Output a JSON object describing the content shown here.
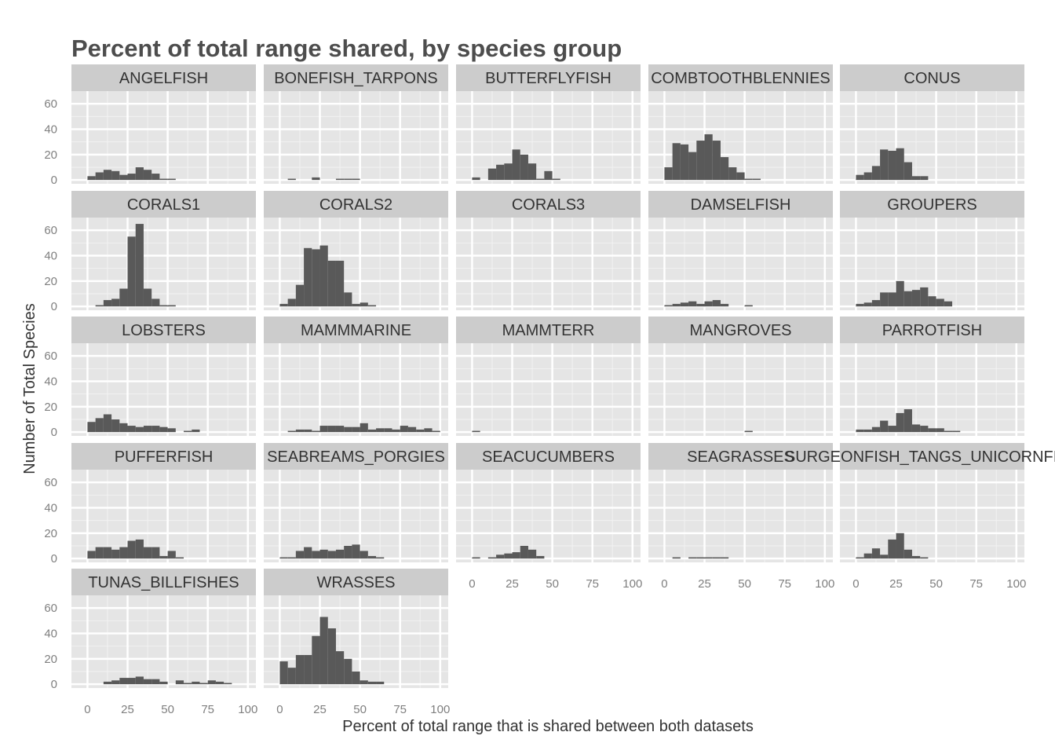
{
  "chart_data": {
    "type": "bar",
    "title": "Percent of total range shared, by species group",
    "xlabel": "Percent of total range that is shared between both datasets",
    "ylabel": "Number of Total Species",
    "xlim": [
      -10,
      105
    ],
    "ylim": [
      -3,
      70
    ],
    "x_ticks": [
      0,
      25,
      50,
      75,
      100
    ],
    "y_ticks": [
      0,
      20,
      40,
      60
    ],
    "bin_width": 5,
    "bin_starts": [
      0,
      5,
      10,
      15,
      20,
      25,
      30,
      35,
      40,
      45,
      50,
      55,
      60,
      65,
      70,
      75,
      80,
      85,
      90,
      95
    ],
    "grid": true,
    "panels": [
      {
        "name": "ANGELFISH",
        "values": [
          3,
          6,
          8,
          7,
          4,
          5,
          10,
          8,
          5,
          1,
          1,
          0,
          0,
          0,
          0,
          0,
          0,
          0,
          0,
          0
        ]
      },
      {
        "name": "BONEFISH_TARPONS",
        "values": [
          0,
          1,
          0,
          0,
          2,
          0,
          0,
          1,
          1,
          1,
          0,
          0,
          0,
          0,
          0,
          0,
          0,
          0,
          0,
          0
        ]
      },
      {
        "name": "BUTTERFLYFISH",
        "values": [
          2,
          0,
          9,
          12,
          13,
          24,
          20,
          13,
          1,
          7,
          1,
          0,
          0,
          0,
          0,
          0,
          0,
          0,
          0,
          0
        ]
      },
      {
        "name": "COMBTOOTHBLENNIES",
        "values": [
          10,
          29,
          28,
          22,
          31,
          36,
          31,
          18,
          10,
          6,
          1,
          1,
          0,
          0,
          0,
          0,
          0,
          0,
          0,
          0
        ]
      },
      {
        "name": "CONUS",
        "values": [
          4,
          6,
          11,
          24,
          23,
          25,
          14,
          3,
          3,
          0,
          0,
          0,
          0,
          0,
          0,
          0,
          0,
          0,
          0,
          0
        ]
      },
      {
        "name": "CORALS1",
        "values": [
          0,
          1,
          5,
          6,
          14,
          55,
          65,
          14,
          6,
          1,
          1,
          0,
          0,
          0,
          0,
          0,
          0,
          0,
          0,
          0
        ]
      },
      {
        "name": "CORALS2",
        "values": [
          2,
          6,
          17,
          46,
          45,
          48,
          36,
          36,
          11,
          2,
          3,
          1,
          0,
          0,
          0,
          0,
          0,
          0,
          0,
          0
        ]
      },
      {
        "name": "CORALS3",
        "values": [
          0,
          0,
          0,
          0,
          0,
          0,
          0,
          0,
          0,
          0,
          0,
          0,
          0,
          0,
          0,
          0,
          0,
          0,
          0,
          0
        ]
      },
      {
        "name": "DAMSELFISH",
        "values": [
          1,
          2,
          3,
          4,
          2,
          4,
          5,
          2,
          0,
          0,
          1,
          0,
          0,
          0,
          0,
          0,
          0,
          0,
          0,
          0
        ]
      },
      {
        "name": "GROUPERS",
        "values": [
          2,
          3,
          5,
          11,
          11,
          20,
          12,
          13,
          15,
          8,
          6,
          4,
          0,
          0,
          0,
          0,
          0,
          0,
          0,
          0
        ]
      },
      {
        "name": "LOBSTERS",
        "values": [
          8,
          11,
          14,
          10,
          7,
          5,
          4,
          5,
          5,
          4,
          3,
          0,
          1,
          2,
          0,
          0,
          0,
          0,
          0,
          0
        ]
      },
      {
        "name": "MAMMMARINE",
        "values": [
          0,
          1,
          2,
          2,
          1,
          5,
          5,
          5,
          4,
          4,
          7,
          2,
          3,
          3,
          2,
          5,
          4,
          2,
          3,
          1
        ]
      },
      {
        "name": "MAMMTERR",
        "values": [
          1,
          0,
          0,
          0,
          0,
          0,
          0,
          0,
          0,
          0,
          0,
          0,
          0,
          0,
          0,
          0,
          0,
          0,
          0,
          0
        ]
      },
      {
        "name": "MANGROVES",
        "values": [
          0,
          0,
          0,
          0,
          0,
          0,
          0,
          0,
          0,
          0,
          1,
          0,
          0,
          0,
          0,
          0,
          0,
          0,
          0,
          0
        ]
      },
      {
        "name": "PARROTFISH",
        "values": [
          2,
          2,
          4,
          9,
          5,
          15,
          18,
          6,
          5,
          3,
          3,
          1,
          1,
          0,
          0,
          0,
          0,
          0,
          0,
          0
        ]
      },
      {
        "name": "PUFFERFISH",
        "values": [
          6,
          9,
          9,
          7,
          9,
          14,
          15,
          9,
          9,
          2,
          6,
          1,
          0,
          0,
          0,
          0,
          0,
          0,
          0,
          0
        ]
      },
      {
        "name": "SEABREAMS_PORGIES",
        "values": [
          1,
          1,
          6,
          9,
          6,
          7,
          6,
          7,
          10,
          11,
          6,
          2,
          1,
          0,
          0,
          0,
          0,
          0,
          0,
          0
        ]
      },
      {
        "name": "SEACUCUMBERS",
        "values": [
          1,
          0,
          1,
          3,
          4,
          5,
          10,
          7,
          2,
          0,
          0,
          0,
          0,
          0,
          0,
          0,
          0,
          0,
          0,
          0
        ]
      },
      {
        "name": "SEAGRASSES",
        "values": [
          0,
          1,
          0,
          1,
          1,
          1,
          1,
          1,
          0,
          0,
          0,
          0,
          0,
          0,
          0,
          0,
          0,
          0,
          0,
          0
        ]
      },
      {
        "name": "SURGEONFISH_TANGS_UNICORNFISH",
        "values": [
          1,
          4,
          8,
          3,
          15,
          20,
          7,
          2,
          1,
          0,
          0,
          0,
          0,
          0,
          0,
          0,
          0,
          0,
          0,
          0
        ]
      },
      {
        "name": "TUNAS_BILLFISHES",
        "values": [
          0,
          0,
          2,
          3,
          5,
          5,
          6,
          4,
          4,
          2,
          0,
          3,
          1,
          2,
          1,
          3,
          2,
          1,
          0,
          0
        ]
      },
      {
        "name": "WRASSES",
        "values": [
          18,
          13,
          23,
          23,
          38,
          53,
          44,
          26,
          20,
          10,
          3,
          2,
          2,
          0,
          0,
          0,
          0,
          0,
          0,
          0
        ]
      }
    ]
  }
}
